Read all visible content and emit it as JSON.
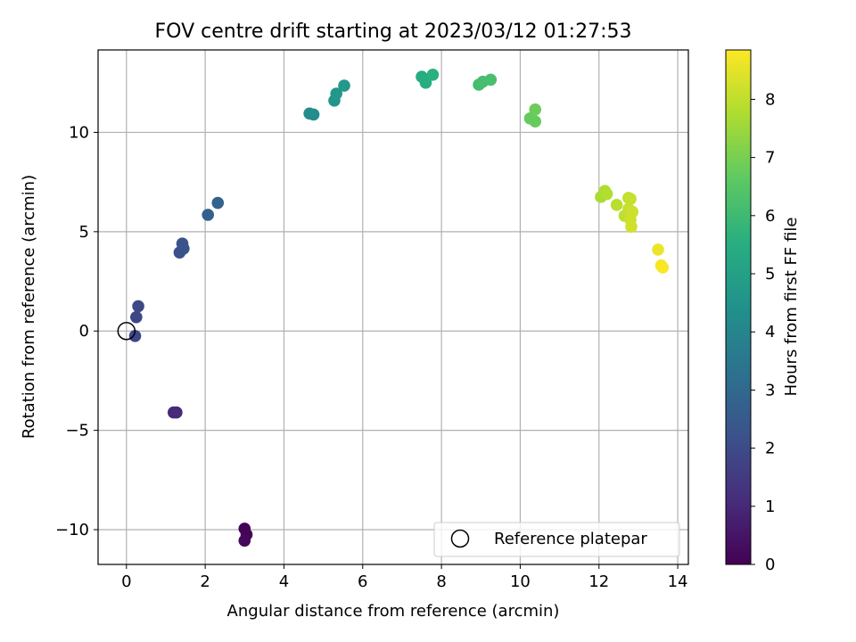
{
  "chart_data": {
    "type": "scatter",
    "title": "FOV centre drift starting at 2023/03/12 01:27:53",
    "xlabel": "Angular distance from reference (arcmin)",
    "ylabel": "Rotation from reference (arcmin)",
    "xlim": [
      -0.72,
      14.27
    ],
    "ylim": [
      -11.75,
      14.15
    ],
    "xticks": [
      0,
      2,
      4,
      6,
      8,
      10,
      12,
      14
    ],
    "yticks": [
      -10,
      -5,
      0,
      5,
      10
    ],
    "grid": true,
    "colorbar": {
      "label": "Hours from first FF file",
      "range": [
        0,
        8.85
      ],
      "ticks": [
        0,
        1,
        2,
        3,
        4,
        5,
        6,
        7,
        8
      ],
      "colormap": "viridis"
    },
    "legend": {
      "placement": "bottom-right",
      "entries": [
        "Reference platepar"
      ]
    },
    "reference_point": {
      "x": 0,
      "y": 0
    },
    "points": [
      {
        "x": 3.0,
        "y": -9.95,
        "hours": 0.05
      },
      {
        "x": 3.05,
        "y": -10.25,
        "hours": 0.1
      },
      {
        "x": 3.0,
        "y": -10.55,
        "hours": 0.15
      },
      {
        "x": 1.2,
        "y": -4.1,
        "hours": 1.0
      },
      {
        "x": 1.27,
        "y": -4.1,
        "hours": 1.05
      },
      {
        "x": 0.22,
        "y": -0.25,
        "hours": 1.85
      },
      {
        "x": 0.25,
        "y": 0.7,
        "hours": 1.9
      },
      {
        "x": 0.3,
        "y": 1.25,
        "hours": 1.95
      },
      {
        "x": 1.35,
        "y": 3.95,
        "hours": 2.2
      },
      {
        "x": 1.45,
        "y": 4.15,
        "hours": 2.25
      },
      {
        "x": 1.42,
        "y": 4.4,
        "hours": 2.3
      },
      {
        "x": 2.07,
        "y": 5.85,
        "hours": 2.75
      },
      {
        "x": 2.32,
        "y": 6.45,
        "hours": 2.85
      },
      {
        "x": 4.65,
        "y": 10.95,
        "hours": 4.25
      },
      {
        "x": 4.75,
        "y": 10.9,
        "hours": 4.3
      },
      {
        "x": 5.28,
        "y": 11.6,
        "hours": 4.6
      },
      {
        "x": 5.33,
        "y": 11.95,
        "hours": 4.65
      },
      {
        "x": 5.53,
        "y": 12.35,
        "hours": 4.75
      },
      {
        "x": 7.5,
        "y": 12.8,
        "hours": 5.5
      },
      {
        "x": 7.6,
        "y": 12.5,
        "hours": 5.55
      },
      {
        "x": 7.78,
        "y": 12.9,
        "hours": 5.6
      },
      {
        "x": 8.95,
        "y": 12.4,
        "hours": 6.15
      },
      {
        "x": 9.05,
        "y": 12.55,
        "hours": 6.2
      },
      {
        "x": 9.25,
        "y": 12.65,
        "hours": 6.25
      },
      {
        "x": 10.25,
        "y": 10.7,
        "hours": 6.75
      },
      {
        "x": 10.38,
        "y": 10.55,
        "hours": 6.8
      },
      {
        "x": 10.38,
        "y": 11.15,
        "hours": 6.85
      },
      {
        "x": 12.05,
        "y": 6.75,
        "hours": 7.75
      },
      {
        "x": 12.15,
        "y": 7.05,
        "hours": 7.8
      },
      {
        "x": 12.2,
        "y": 6.9,
        "hours": 7.85
      },
      {
        "x": 12.45,
        "y": 6.35,
        "hours": 7.95
      },
      {
        "x": 12.65,
        "y": 5.8,
        "hours": 8.0
      },
      {
        "x": 12.75,
        "y": 6.7,
        "hours": 8.05
      },
      {
        "x": 12.8,
        "y": 6.65,
        "hours": 8.1
      },
      {
        "x": 12.75,
        "y": 6.15,
        "hours": 8.15
      },
      {
        "x": 12.8,
        "y": 5.6,
        "hours": 8.2
      },
      {
        "x": 12.85,
        "y": 6.0,
        "hours": 8.2
      },
      {
        "x": 12.82,
        "y": 5.25,
        "hours": 8.25
      },
      {
        "x": 13.5,
        "y": 4.1,
        "hours": 8.6
      },
      {
        "x": 13.58,
        "y": 3.3,
        "hours": 8.75
      },
      {
        "x": 13.62,
        "y": 3.2,
        "hours": 8.8
      }
    ]
  }
}
